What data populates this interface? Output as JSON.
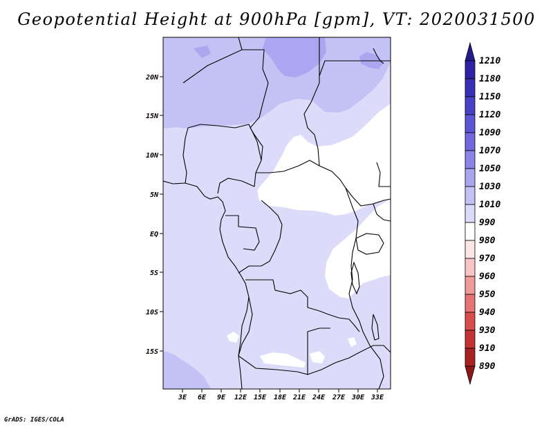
{
  "title": "Geopotential Height at 900hPa [gpm], VT: 2020031500",
  "footer": "GrADS: IGES/COLA",
  "map": {
    "lat_labels": [
      "20N",
      "15N",
      "10N",
      "5N",
      "EQ",
      "5S",
      "10S",
      "15S"
    ],
    "lon_labels": [
      "3E",
      "6E",
      "9E",
      "12E",
      "15E",
      "18E",
      "21E",
      "24E",
      "27E",
      "30E",
      "33E"
    ],
    "extent": {
      "lon_min": 0,
      "lon_max": 35,
      "lat_min": -20,
      "lat_max": 25
    }
  },
  "colorbar": {
    "levels": [
      "1210",
      "1180",
      "1150",
      "1120",
      "1090",
      "1070",
      "1050",
      "1030",
      "1010",
      "990",
      "980",
      "970",
      "960",
      "950",
      "940",
      "930",
      "910",
      "890"
    ],
    "colors": [
      "#241c8c",
      "#2e23a4",
      "#3a30b8",
      "#4a40c8",
      "#5c55d4",
      "#7068dc",
      "#8a84e6",
      "#aaa6f0",
      "#c4c2f4",
      "#dcdbfa",
      "#ffffff",
      "#fde6e6",
      "#f9c4c4",
      "#f19a9a",
      "#e67474",
      "#d84e4e",
      "#c43434",
      "#a82222",
      "#8c1818"
    ]
  },
  "colors": {
    "field_1010_1030": "#dcdbfa",
    "field_1030_1050": "#c4c2f4",
    "field_1050_1070": "#aaa6f0",
    "field_below_1010": "#ffffff",
    "border": "#000000"
  }
}
